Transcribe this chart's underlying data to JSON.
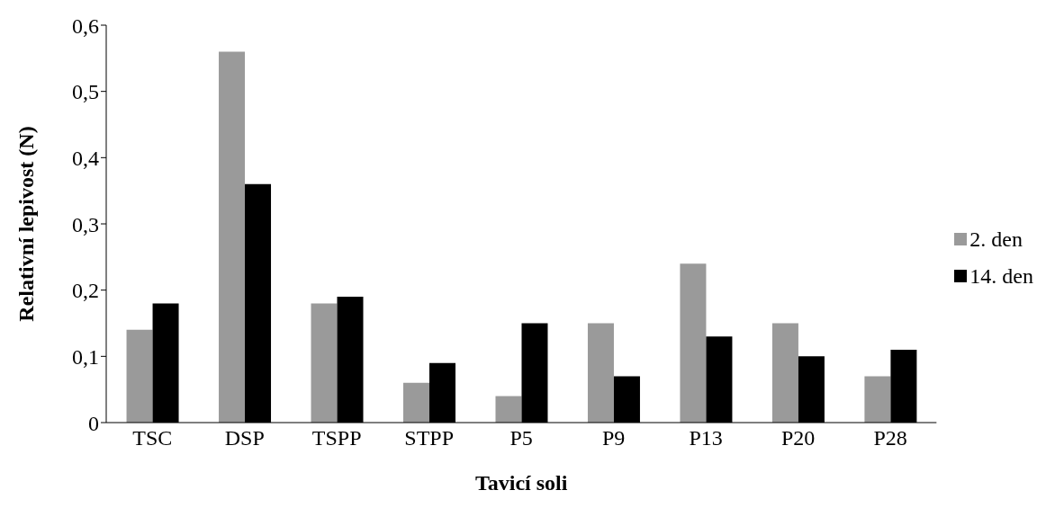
{
  "chart_data": {
    "type": "bar",
    "xlabel": "Tavicí soli",
    "ylabel": "Relativní lepivost (N)",
    "categories": [
      "TSC",
      "DSP",
      "TSPP",
      "STPP",
      "P5",
      "P9",
      "P13",
      "P20",
      "P28"
    ],
    "series": [
      {
        "name": "2. den",
        "color": "#9a9a9a",
        "values": [
          0.14,
          0.56,
          0.18,
          0.06,
          0.04,
          0.15,
          0.24,
          0.15,
          0.07
        ]
      },
      {
        "name": "14. den",
        "color": "#000000",
        "values": [
          0.18,
          0.36,
          0.19,
          0.09,
          0.15,
          0.07,
          0.13,
          0.1,
          0.11
        ]
      }
    ],
    "ylim": [
      0,
      0.6
    ],
    "yticks": [
      0,
      {
        "value": 0.1,
        "label": "0,1"
      },
      {
        "value": 0.2,
        "label": "0,2"
      },
      {
        "value": 0.3,
        "label": "0,3"
      },
      {
        "value": 0.4,
        "label": "0,4"
      },
      {
        "value": 0.5,
        "label": "0,5"
      },
      {
        "value": 0.6,
        "label": "0,6"
      }
    ],
    "grid": false,
    "legend": "right"
  }
}
